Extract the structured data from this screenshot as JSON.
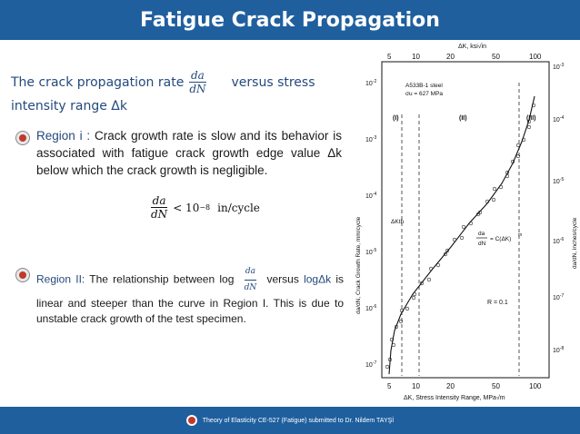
{
  "title": "Fatigue Crack Propagation",
  "intro": {
    "prefix": "The crack propagation rate",
    "frac_num": "da",
    "frac_den": "dN",
    "suffix": "versus stress",
    "line2": "intensity range Δk"
  },
  "region1": {
    "label": "Region i :",
    "text": "Crack growth rate is slow and its behavior is associated with fatigue crack growth edge value Δk below which the crack growth is negligible."
  },
  "formula": {
    "num": "da",
    "den": "dN",
    "rhs": "< 10",
    "exp": "−8",
    "unit": "in/cycle"
  },
  "region2": {
    "label": "Region II:",
    "text_a": "The relationship between log",
    "frac_num": "da",
    "frac_den": "dN",
    "text_b": "versus",
    "hl2": "logΔk",
    "text_c": "is linear and steeper than the curve in Region I. This is due to unstable crack growth of the test specimen."
  },
  "chart": {
    "top_axis_label": "ΔK, ksi√in",
    "top_ticks": [
      "5",
      "10",
      "20",
      "50",
      "100"
    ],
    "bottom_ticks": [
      "5",
      "10",
      "20",
      "50",
      "100"
    ],
    "bottom_axis_label": "ΔK, Stress Intensity Range, MPa√m",
    "left_ticks": [
      "10",
      "10",
      "10",
      "10",
      "10",
      "10"
    ],
    "left_exps": [
      "-2",
      "-3",
      "-4",
      "-5",
      "-6",
      "-7"
    ],
    "right_ticks": [
      "10",
      "10",
      "10",
      "10",
      "10",
      "10"
    ],
    "right_exps": [
      "-3",
      "-4",
      "-5",
      "-6",
      "-7",
      "-8"
    ],
    "left_axis_label": "da/dN, Crack Growth Rate, mm/cycle",
    "right_axis_label": "da/dN, inches/cycle",
    "material": "A533B-1 steel",
    "strength": "σu = 627 MPa",
    "region_labels": [
      "(I)",
      "(II)",
      "(III)"
    ],
    "dk_th": "ΔKth",
    "law_frac_num": "da",
    "law_frac_den": "dN",
    "law_rhs": "= C(ΔK)",
    "law_exp": "m",
    "r_label": "R = 0.1"
  },
  "footer": {
    "text": "Theory of Elasticity CE-527    (Fatigue)  submitted to  Dr. Nildem TAYŞİ"
  },
  "colors": {
    "bar": "#1f5f9e",
    "text_blue": "#244a7c"
  }
}
